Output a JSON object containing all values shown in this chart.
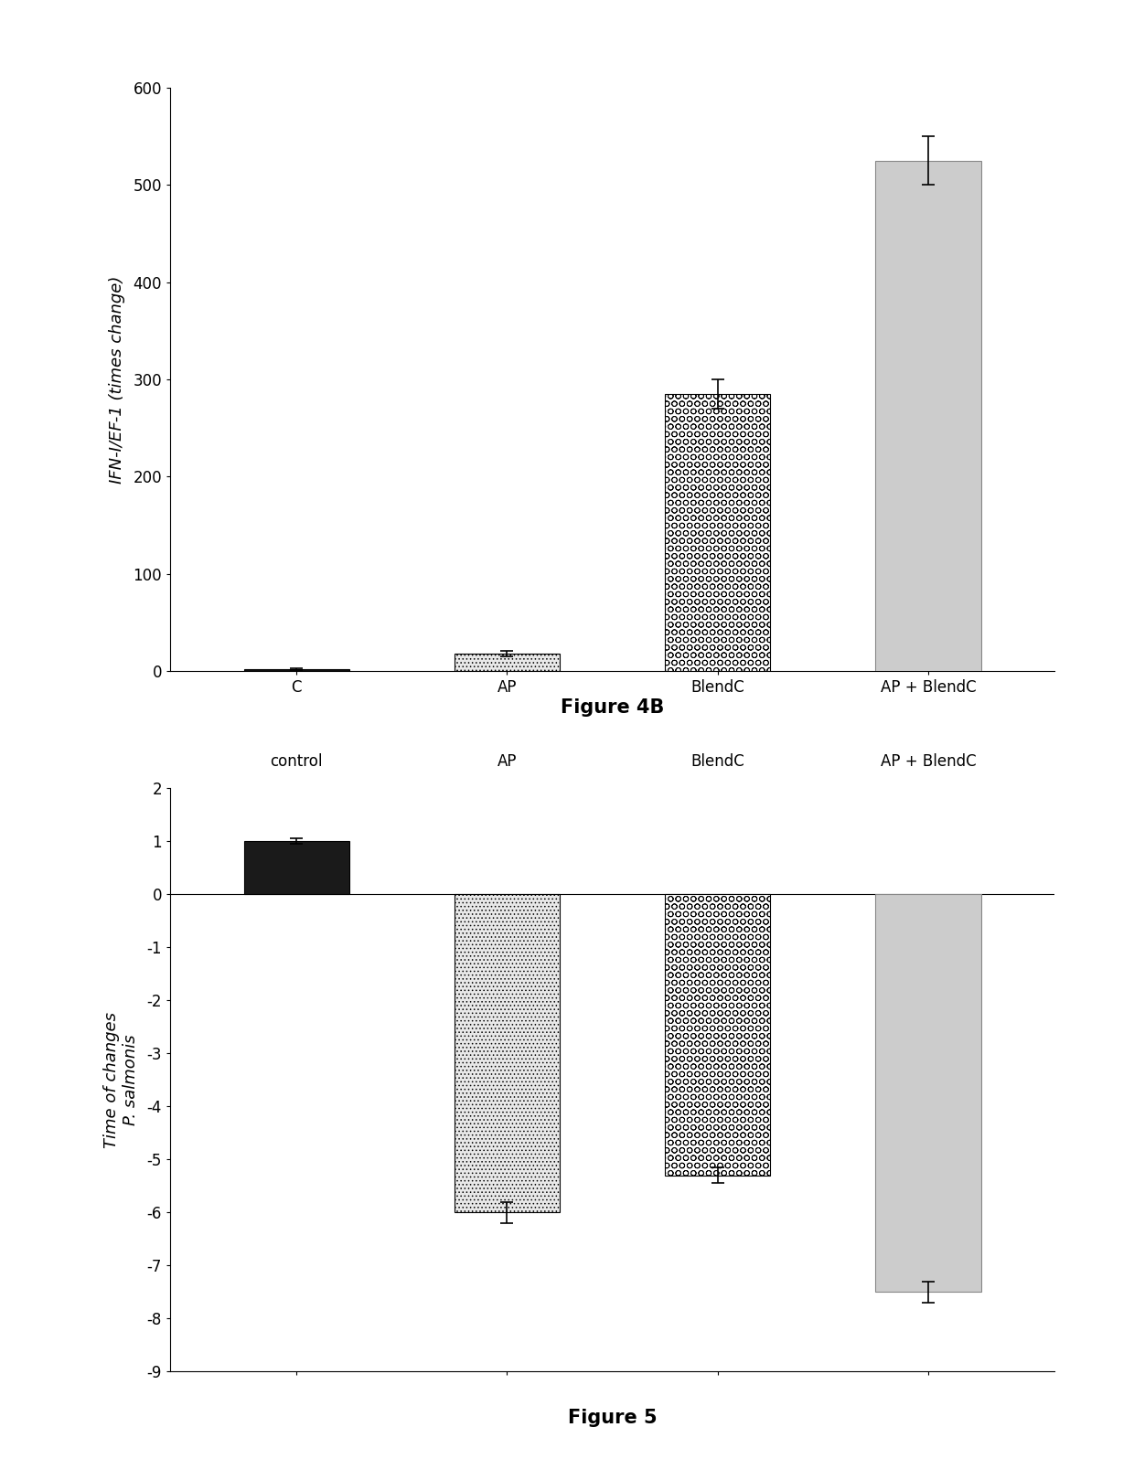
{
  "fig4b": {
    "categories": [
      "C",
      "AP",
      "BlendC",
      "AP + BlendC"
    ],
    "values": [
      2,
      18,
      285,
      525
    ],
    "errors": [
      1,
      3,
      15,
      25
    ],
    "ylabel": "IFN-I/EF-1 (times change)",
    "ylim": [
      0,
      600
    ],
    "yticks": [
      0,
      100,
      200,
      300,
      400,
      500,
      600
    ],
    "title": "Figure 4B",
    "bar_styles": [
      {
        "facecolor": "#111111",
        "edgecolor": "#000000",
        "hatch": "",
        "linewidth": 0.8
      },
      {
        "facecolor": "#e8e8e8",
        "edgecolor": "#000000",
        "hatch": "....",
        "linewidth": 0.8
      },
      {
        "facecolor": "#ffffff",
        "edgecolor": "#000000",
        "hatch": "OO",
        "linewidth": 0.8
      },
      {
        "facecolor": "#cccccc",
        "edgecolor": "#888888",
        "hatch": "",
        "linewidth": 0.8
      }
    ]
  },
  "fig5": {
    "categories": [
      "control",
      "AP",
      "BlendC",
      "AP + BlendC"
    ],
    "values": [
      1.0,
      -6.0,
      -5.3,
      -7.5
    ],
    "errors": [
      0.05,
      0.2,
      0.15,
      0.2
    ],
    "ylabel": "Time of changes\nP. salmonis",
    "ylim": [
      -9,
      2
    ],
    "yticks": [
      2,
      1,
      0,
      -1,
      -2,
      -3,
      -4,
      -5,
      -6,
      -7,
      -8,
      -9
    ],
    "title": "Figure 5",
    "bar_styles": [
      {
        "facecolor": "#1a1a1a",
        "edgecolor": "#000000",
        "hatch": "",
        "linewidth": 0.8
      },
      {
        "facecolor": "#e8e8e8",
        "edgecolor": "#000000",
        "hatch": "....",
        "linewidth": 0.8
      },
      {
        "facecolor": "#ffffff",
        "edgecolor": "#000000",
        "hatch": "OO",
        "linewidth": 0.8
      },
      {
        "facecolor": "#cccccc",
        "edgecolor": "#888888",
        "hatch": "",
        "linewidth": 0.8
      }
    ]
  },
  "background_color": "#ffffff",
  "title_fontsize": 15,
  "label_fontsize": 13,
  "tick_fontsize": 12,
  "category_fontsize": 12,
  "bar_width": 0.5
}
